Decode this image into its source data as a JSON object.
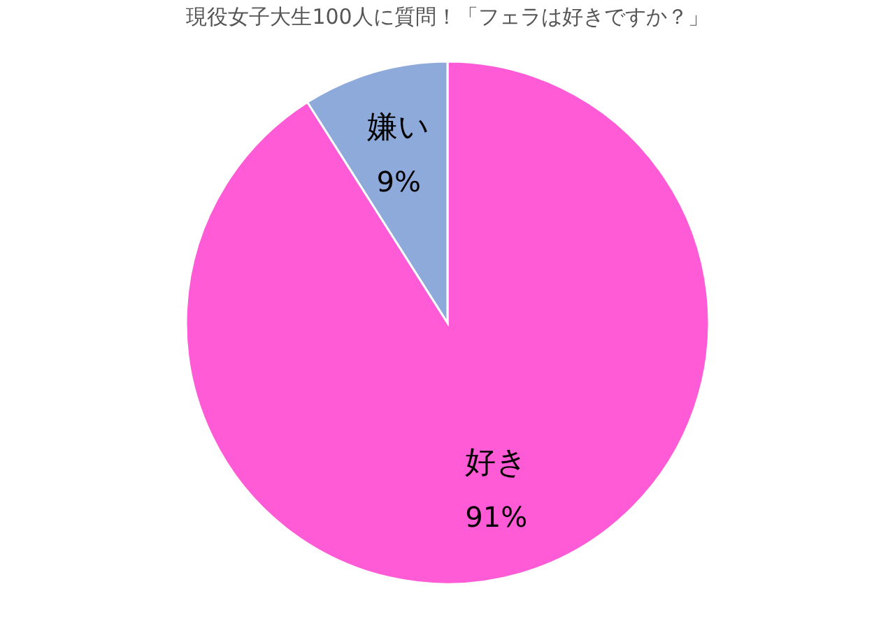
{
  "chart_data": {
    "type": "pie",
    "title": "現役女子大生100人に質問！「フェラは好きですか？」",
    "categories": [
      "好き",
      "嫌い"
    ],
    "values": [
      91,
      9
    ],
    "colors": [
      "#ff5bd6",
      "#8eaadb"
    ],
    "value_labels": [
      "91%",
      "9%"
    ],
    "legend": false
  }
}
